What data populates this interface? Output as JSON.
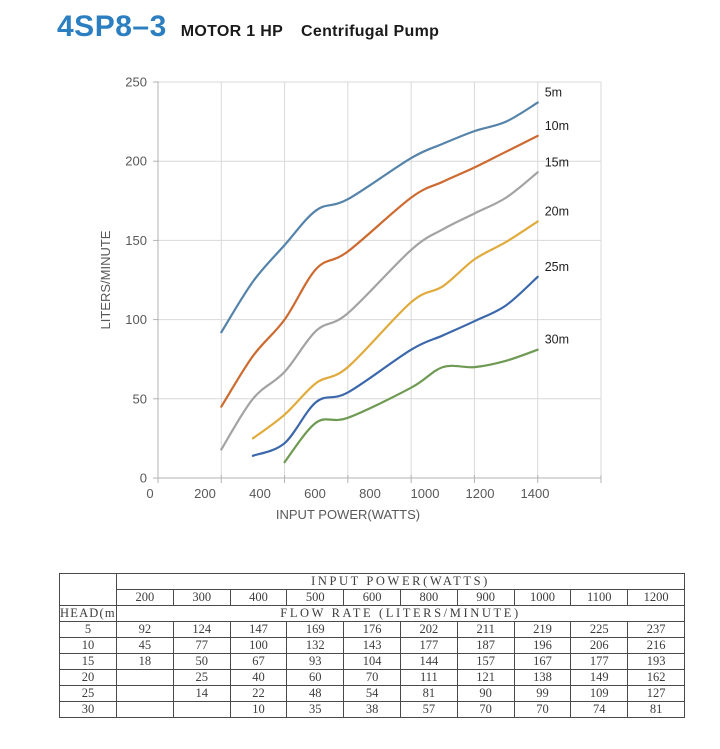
{
  "header": {
    "model": "4SP8–3",
    "motor": "MOTOR 1 HP",
    "product": "Centrifugal Pump",
    "model_color": "#2b7fc0"
  },
  "chart_data": {
    "type": "line",
    "x": [
      200,
      300,
      400,
      500,
      600,
      800,
      900,
      1000,
      1100,
      1200
    ],
    "series": [
      {
        "name": "5m",
        "color": "#5583aa",
        "values": [
          92,
          124,
          147,
          169,
          176,
          202,
          211,
          219,
          225,
          237
        ]
      },
      {
        "name": "10m",
        "color": "#cd6a30",
        "values": [
          45,
          77,
          100,
          132,
          143,
          177,
          187,
          196,
          206,
          216
        ]
      },
      {
        "name": "15m",
        "color": "#a3a3a3",
        "values": [
          18,
          50,
          67,
          93,
          104,
          144,
          157,
          167,
          177,
          193
        ]
      },
      {
        "name": "20m",
        "color": "#e0ab3c",
        "values": [
          null,
          25,
          40,
          60,
          70,
          111,
          121,
          138,
          149,
          162
        ]
      },
      {
        "name": "25m",
        "color": "#3c67ab",
        "values": [
          null,
          14,
          22,
          48,
          54,
          81,
          90,
          99,
          109,
          127
        ]
      },
      {
        "name": "30m",
        "color": "#6f9a54",
        "values": [
          null,
          null,
          10,
          35,
          38,
          57,
          70,
          70,
          74,
          81
        ]
      }
    ],
    "xlabel": "INPUT POWER(WATTS)",
    "ylabel": "LITERS/MINUTE",
    "xlim": [
      0,
      1400
    ],
    "ylim": [
      0,
      250
    ],
    "x_ticks": [
      0,
      200,
      400,
      600,
      800,
      1000,
      1200,
      1400
    ],
    "y_ticks": [
      0,
      50,
      100,
      150,
      200,
      250
    ],
    "grid": true,
    "legend_position": "line-end-labels",
    "grid_color": "#d9d9d9",
    "axis_color": "#b3b3b3",
    "tick_label_color": "#595959",
    "series_label_color": "#1f1f1f"
  },
  "table": {
    "col_group_header": "INPUT POWER(WATTS)",
    "row_group_header": "FLOW RATE (LITERS/MINUTE)",
    "head_label": "HEAD(m)",
    "watts": [
      "200",
      "300",
      "400",
      "500",
      "600",
      "800",
      "900",
      "1000",
      "1100",
      "1200"
    ],
    "rows": [
      {
        "head": "5",
        "values": [
          "92",
          "124",
          "147",
          "169",
          "176",
          "202",
          "211",
          "219",
          "225",
          "237"
        ]
      },
      {
        "head": "10",
        "values": [
          "45",
          "77",
          "100",
          "132",
          "143",
          "177",
          "187",
          "196",
          "206",
          "216"
        ]
      },
      {
        "head": "15",
        "values": [
          "18",
          "50",
          "67",
          "93",
          "104",
          "144",
          "157",
          "167",
          "177",
          "193"
        ]
      },
      {
        "head": "20",
        "values": [
          "",
          "25",
          "40",
          "60",
          "70",
          "111",
          "121",
          "138",
          "149",
          "162"
        ]
      },
      {
        "head": "25",
        "values": [
          "",
          "14",
          "22",
          "48",
          "54",
          "81",
          "90",
          "99",
          "109",
          "127"
        ]
      },
      {
        "head": "30",
        "values": [
          "",
          "",
          "10",
          "35",
          "38",
          "57",
          "70",
          "70",
          "74",
          "81"
        ]
      }
    ]
  }
}
